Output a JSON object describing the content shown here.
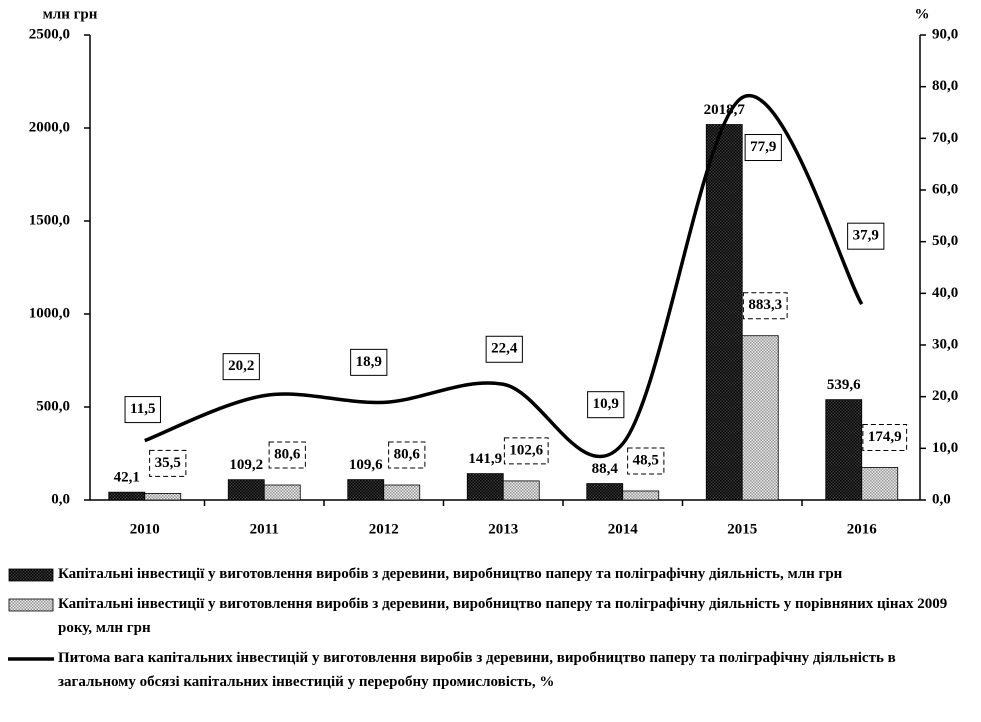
{
  "chart_data": {
    "type": "bar",
    "y_label": "млн грн",
    "y2_label": "%",
    "categories": [
      "2010",
      "2011",
      "2012",
      "2013",
      "2014",
      "2015",
      "2016"
    ],
    "series": [
      {
        "name": "Капітальні інвестиції у виготовлення виробів з деревини, виробництво паперу та поліграфічну діяльність, млн грн",
        "color": "#3a3a3a",
        "values": [
          42.1,
          109.2,
          109.6,
          141.9,
          88.4,
          2018.7,
          539.6
        ],
        "value_labels": [
          "42,1",
          "109,2",
          "109,6",
          "141,9",
          "88,4",
          "2018,7",
          "539,6"
        ]
      },
      {
        "name": "Капітальні інвестиції у виготовлення виробів з деревини, виробництво паперу та поліграфічну діяльність у порівняних цінах 2009 року, млн грн",
        "color": "#e6e6e6",
        "values": [
          35.5,
          80.6,
          80.6,
          102.6,
          48.5,
          883.3,
          174.9
        ],
        "value_labels": [
          "35,5",
          "80,6",
          "80,6",
          "102,6",
          "48,5",
          "883,3",
          "174,9"
        ]
      },
      {
        "name": "Питома вага капітальних інвестицій у виготовлення виробів з деревини, виробництво паперу та поліграфічну діяльність в загальному обсязі капітальних інвестицій у переробну промисловість, %",
        "type": "line",
        "axis": "y2",
        "color": "#000000",
        "values": [
          11.5,
          20.2,
          18.9,
          22.4,
          10.9,
          77.9,
          37.9
        ],
        "value_labels": [
          "11,5",
          "20,2",
          "18,9",
          "22,4",
          "10,9",
          "77,9",
          "37,9"
        ]
      }
    ],
    "ylim": [
      0,
      2500
    ],
    "yticks": [
      {
        "value": 0,
        "label": "0,0"
      },
      {
        "value": 500,
        "label": "500,0"
      },
      {
        "value": 1000,
        "label": "1000,0"
      },
      {
        "value": 1500,
        "label": "1500,0"
      },
      {
        "value": 2000,
        "label": "2000,0"
      },
      {
        "value": 2500,
        "label": "2500,0"
      }
    ],
    "y2lim": [
      0,
      90
    ],
    "y2ticks": [
      {
        "value": 0,
        "label": "0,0"
      },
      {
        "value": 10,
        "label": "10,0"
      },
      {
        "value": 20,
        "label": "20,0"
      },
      {
        "value": 30,
        "label": "30,0"
      },
      {
        "value": 40,
        "label": "40,0"
      },
      {
        "value": 50,
        "label": "50,0"
      },
      {
        "value": 60,
        "label": "60,0"
      },
      {
        "value": 70,
        "label": "70,0"
      },
      {
        "value": 80,
        "label": "80,0"
      },
      {
        "value": 90,
        "label": "90,0"
      }
    ]
  }
}
